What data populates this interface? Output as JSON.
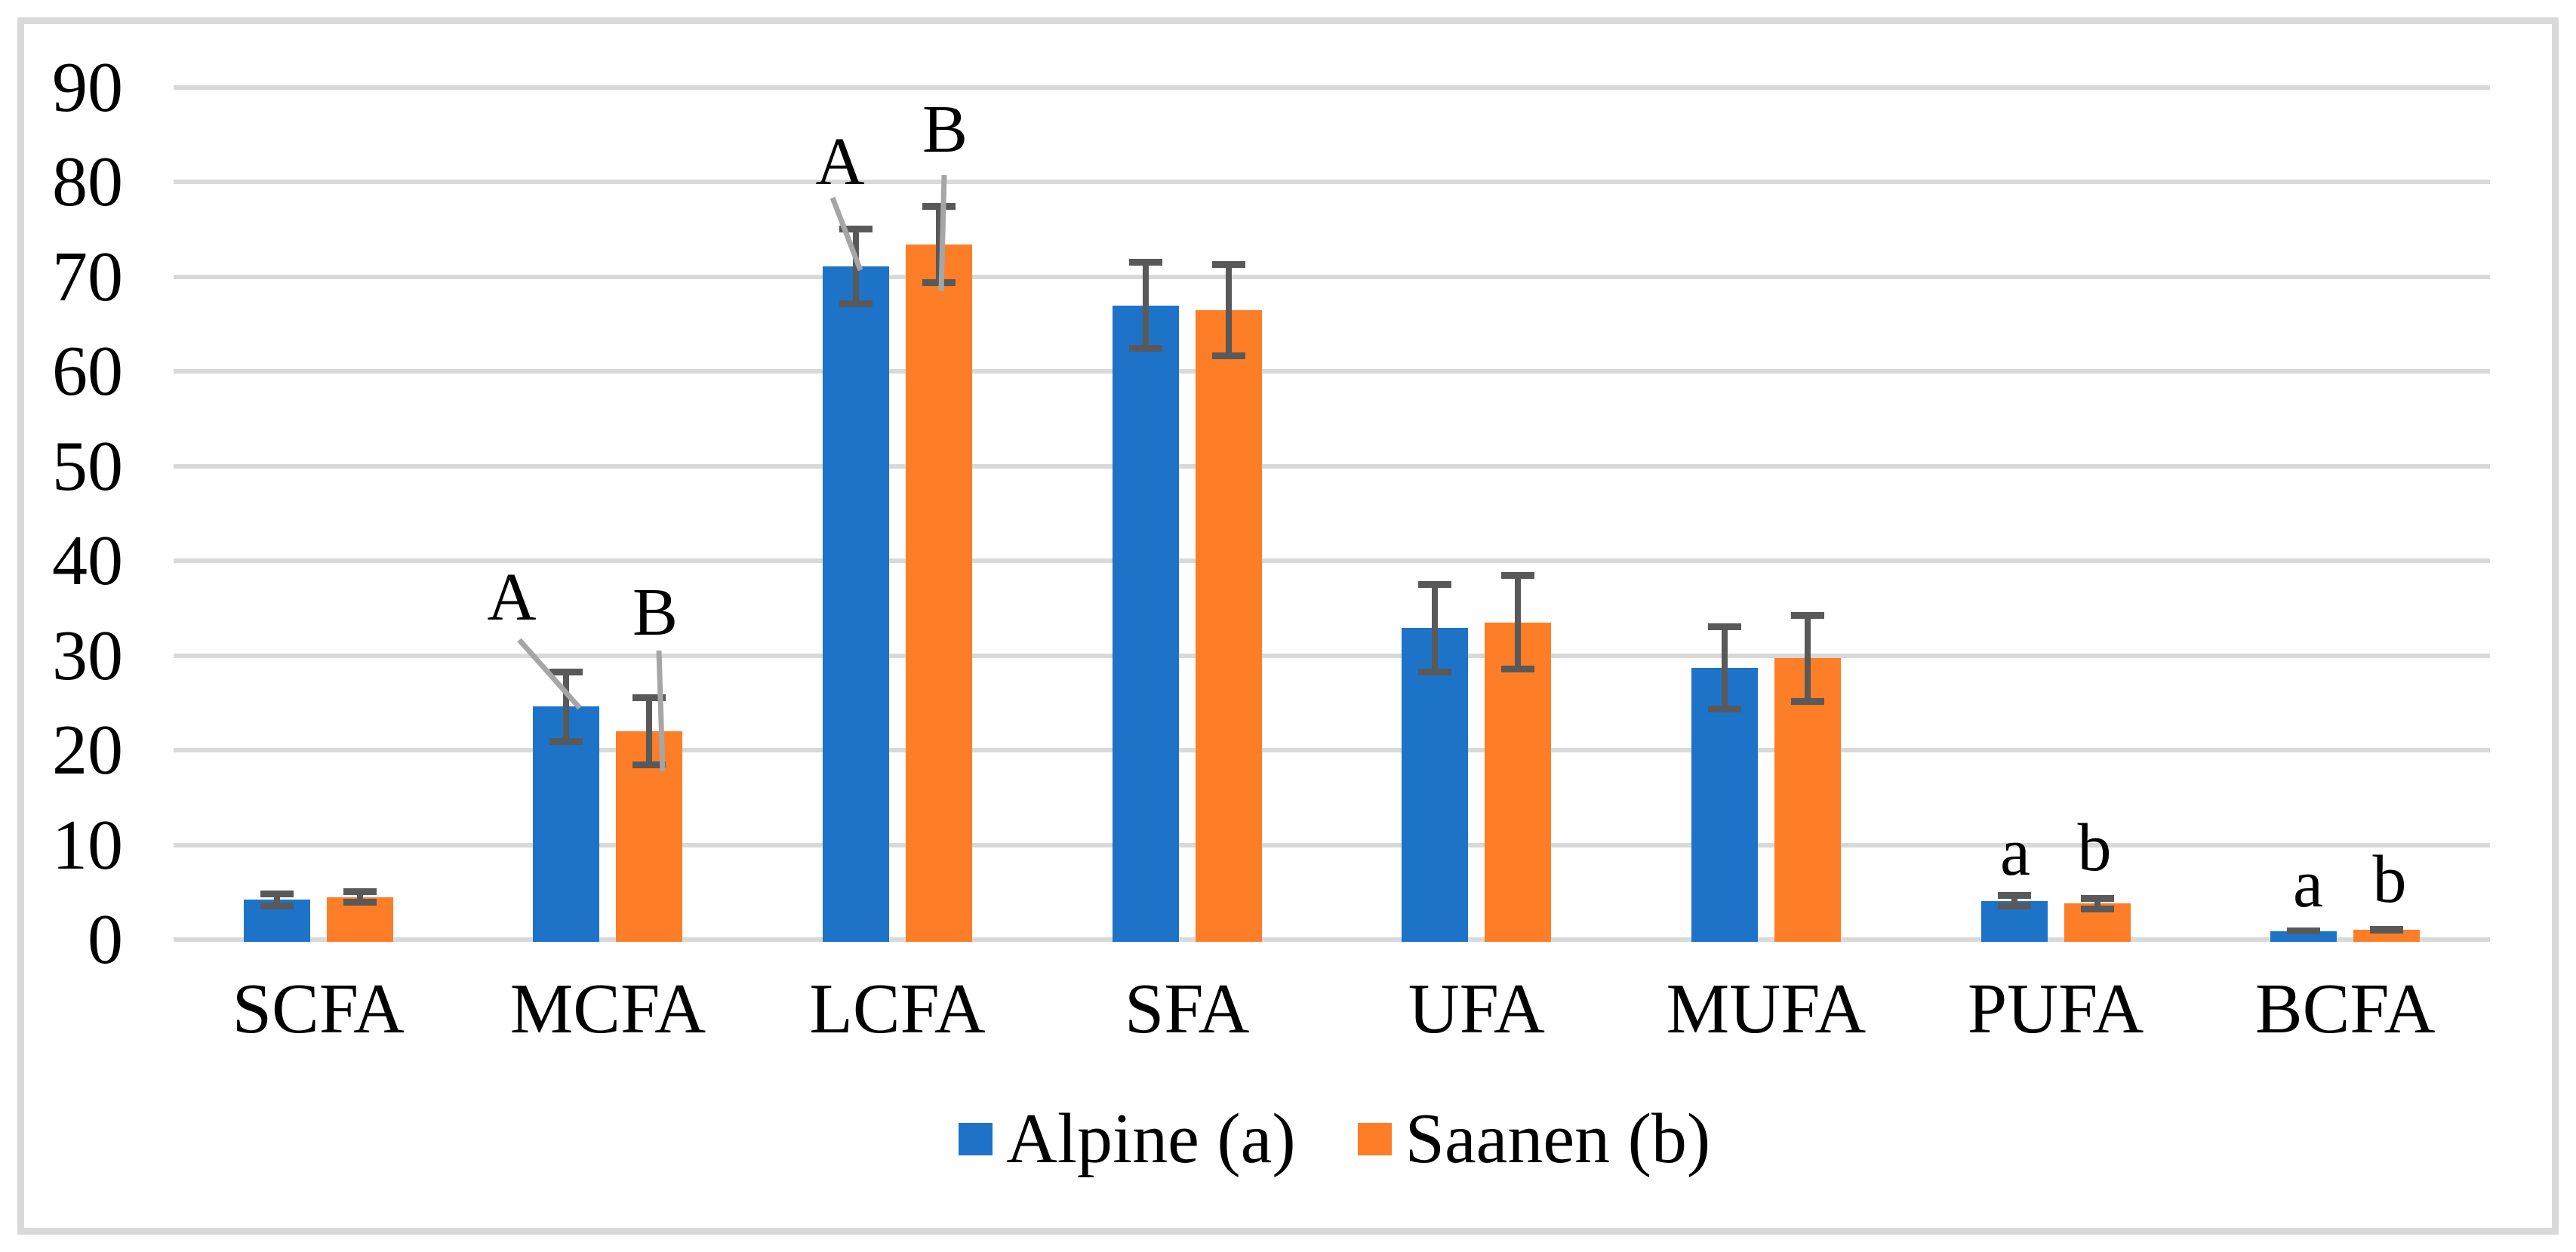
{
  "chart_data": {
    "type": "bar",
    "title": "",
    "xlabel": "",
    "ylabel": "",
    "categories": [
      "SCFA",
      "MCFA",
      "LCFA",
      "SFA",
      "UFA",
      "MUFA",
      "PUFA",
      "BCFA"
    ],
    "series": [
      {
        "name": "Alpine (a)",
        "color": "#1d73c8",
        "values": [
          4.2,
          24.6,
          71.1,
          67.0,
          32.9,
          28.7,
          4.1,
          0.9
        ],
        "errors": [
          1.0,
          4.0,
          4.3,
          4.9,
          5.0,
          4.7,
          0.9,
          0.35
        ]
      },
      {
        "name": "Saanen (b)",
        "color": "#fd7e27",
        "values": [
          4.5,
          22.0,
          73.4,
          66.5,
          33.5,
          29.7,
          3.8,
          1.0
        ],
        "errors": [
          0.9,
          3.9,
          4.4,
          5.2,
          5.3,
          4.9,
          0.9,
          0.4
        ]
      }
    ],
    "ylim": [
      0,
      90
    ],
    "yticks": [
      0,
      10,
      20,
      30,
      40,
      50,
      60,
      70,
      80,
      90
    ],
    "grid": true,
    "legend_position": "bottom-center",
    "annotations": [
      {
        "category": "MCFA",
        "series": "Alpine (a)",
        "label": "A",
        "leader": true
      },
      {
        "category": "MCFA",
        "series": "Saanen (b)",
        "label": "B",
        "leader": true
      },
      {
        "category": "LCFA",
        "series": "Alpine (a)",
        "label": "A",
        "leader": true
      },
      {
        "category": "LCFA",
        "series": "Saanen (b)",
        "label": "B",
        "leader": true
      },
      {
        "category": "PUFA",
        "series": "Alpine (a)",
        "label": "a",
        "leader": false
      },
      {
        "category": "PUFA",
        "series": "Saanen (b)",
        "label": "b",
        "leader": false
      },
      {
        "category": "BCFA",
        "series": "Alpine (a)",
        "label": "a",
        "leader": false
      },
      {
        "category": "BCFA",
        "series": "Saanen (b)",
        "label": "b",
        "leader": false
      }
    ]
  },
  "colors": {
    "background": "#ffffff",
    "figure_border": "#d9d9d9",
    "gridline": "#d9d9d9",
    "tick_text": "#000000",
    "error_bar": "#595959",
    "leader_line": "#a6a6a6"
  }
}
